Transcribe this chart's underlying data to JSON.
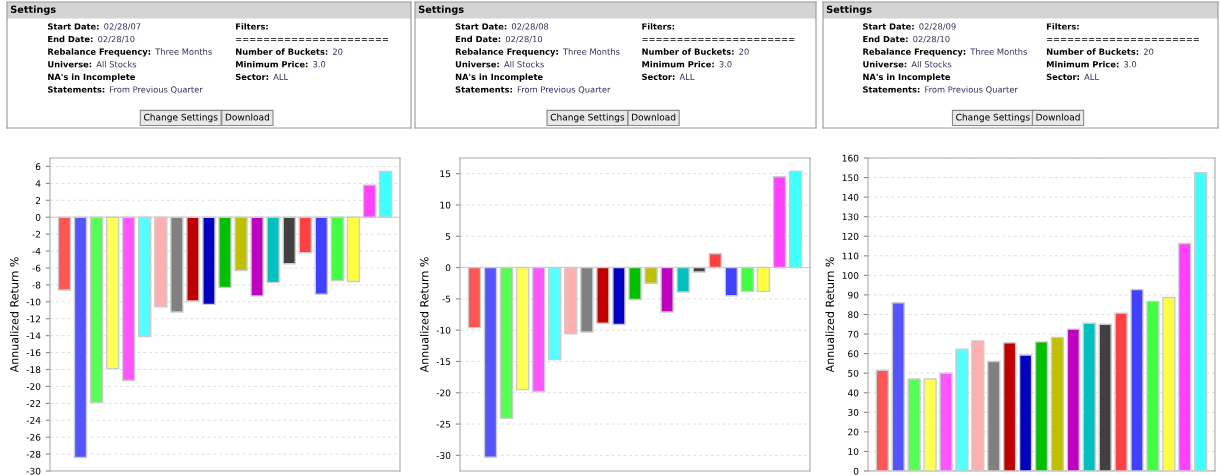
{
  "chart_data": [
    {
      "type": "other",
      "title": "Settings",
      "annotations": [
        "Start Date: 02/28/07",
        "End Date: 02/28/10",
        "Rebalance Frequency: Three Months",
        "Universe: All Stocks",
        "NA's in Incomplete",
        "Statements: From Previous Quarter",
        "Filters:",
        "======================",
        "Number of Buckets: 20",
        "Minimum Price: 3.0",
        "Sector: ALL",
        "Change Settings",
        "Download"
      ]
    },
    {
      "type": "other",
      "title": "Settings",
      "annotations": [
        "Start Date: 02/28/08",
        "End Date: 02/28/10",
        "Rebalance Frequency: Three Months",
        "Universe: All Stocks",
        "NA's in Incomplete",
        "Statements: From Previous Quarter",
        "Filters:",
        "======================",
        "Number of Buckets: 20",
        "Minimum Price: 3.0",
        "Sector: ALL",
        "Change Settings",
        "Download"
      ]
    },
    {
      "type": "other",
      "title": "Settings",
      "annotations": [
        "Start Date: 02/28/09",
        "End Date: 02/28/10",
        "Rebalance Frequency: Three Months",
        "Universe: All Stocks",
        "NA's in Incomplete",
        "Statements: From Previous Quarter",
        "Filters:",
        "======================",
        "Number of Buckets: 20",
        "Minimum Price: 3.0",
        "Sector: ALL",
        "Change Settings",
        "Download"
      ]
    },
    {
      "type": "bar",
      "ylabel": "Annualized Return %",
      "categories": [
        null,
        null,
        null,
        null,
        null,
        null,
        null,
        null,
        null,
        null,
        null,
        null,
        null,
        null,
        null,
        null,
        null,
        null,
        null,
        null,
        null
      ],
      "values": [
        -8.6,
        -28.4,
        -21.9,
        -17.9,
        -19.3,
        -14.1,
        -10.6,
        -11.2,
        -9.9,
        -10.3,
        -8.3,
        -6.3,
        -9.3,
        -7.7,
        -5.5,
        -4.2,
        -9.1,
        -7.5,
        -7.6,
        3.8,
        5.4
      ],
      "colors": [
        "#ff5555",
        "#5555ff",
        "#55ff55",
        "#ffff55",
        "#ff55ff",
        "#55ffff",
        "#ffafaf",
        "#808080",
        "#c00000",
        "#0000c0",
        "#00c000",
        "#c0c000",
        "#c000c0",
        "#00c0c0",
        "#404040",
        "#ff4040",
        "#4040ff",
        "#40ff40",
        "#ffff40",
        "#ff40ff",
        "#40ffff"
      ],
      "ylim": [
        -30,
        7
      ],
      "yticks": [
        -30,
        -28,
        -26,
        -24,
        -22,
        -20,
        -18,
        -16,
        -14,
        -12,
        -10,
        -8,
        -6,
        -4,
        -2,
        0,
        2,
        4,
        6
      ],
      "grid": "y",
      "tick_labels": "y"
    },
    {
      "type": "bar",
      "ylabel": "Annualized Return %",
      "categories": [
        null,
        null,
        null,
        null,
        null,
        null,
        null,
        null,
        null,
        null,
        null,
        null,
        null,
        null,
        null,
        null,
        null,
        null,
        null,
        null,
        null
      ],
      "values": [
        -9.6,
        -30.3,
        -24.1,
        -19.5,
        -19.8,
        -14.7,
        -10.6,
        -10.3,
        -8.9,
        -9.1,
        -5.1,
        -2.5,
        -7.1,
        -3.9,
        -0.7,
        2.2,
        -4.5,
        -3.8,
        -3.8,
        14.5,
        15.4
      ],
      "colors": [
        "#ff5555",
        "#5555ff",
        "#55ff55",
        "#ffff55",
        "#ff55ff",
        "#55ffff",
        "#ffafaf",
        "#808080",
        "#c00000",
        "#0000c0",
        "#00c000",
        "#c0c000",
        "#c000c0",
        "#00c0c0",
        "#404040",
        "#ff4040",
        "#4040ff",
        "#40ff40",
        "#ffff40",
        "#ff40ff",
        "#40ffff"
      ],
      "ylim": [
        -32.5,
        17.5
      ],
      "yticks": [
        -30,
        -25,
        -20,
        -15,
        -10,
        -5,
        0,
        5,
        10,
        15
      ],
      "grid": "y",
      "tick_labels": "y"
    },
    {
      "type": "bar",
      "ylabel": "Annualized Return %",
      "categories": [
        null,
        null,
        null,
        null,
        null,
        null,
        null,
        null,
        null,
        null,
        null,
        null,
        null,
        null,
        null,
        null,
        null,
        null,
        null,
        null,
        null
      ],
      "values": [
        51.5,
        86,
        47,
        47,
        50,
        62.3,
        66.5,
        56,
        65.5,
        59.3,
        66,
        68.3,
        72.5,
        75.5,
        75,
        80.7,
        92.7,
        86.7,
        88.7,
        116.3,
        152.5
      ],
      "colors": [
        "#ff5555",
        "#5555ff",
        "#55ff55",
        "#ffff55",
        "#ff55ff",
        "#55ffff",
        "#ffafaf",
        "#808080",
        "#c00000",
        "#0000c0",
        "#00c000",
        "#c0c000",
        "#c000c0",
        "#00c0c0",
        "#404040",
        "#ff4040",
        "#4040ff",
        "#40ff40",
        "#ffff40",
        "#ff40ff",
        "#40ffff"
      ],
      "ylim": [
        0,
        160
      ],
      "yticks": [
        0,
        10,
        20,
        30,
        40,
        50,
        60,
        70,
        80,
        90,
        100,
        110,
        120,
        130,
        140,
        150,
        160
      ],
      "grid": "y",
      "tick_labels": "y"
    }
  ]
}
